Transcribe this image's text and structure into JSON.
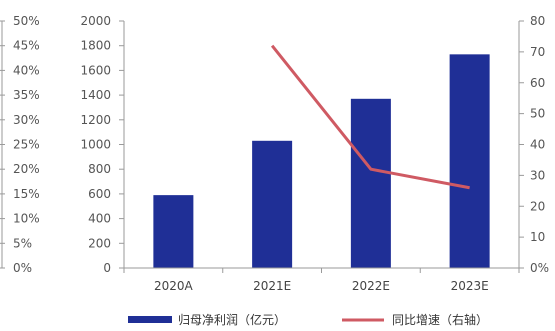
{
  "chart_data": {
    "type": "bar+line",
    "categories": [
      "2020A",
      "2021E",
      "2022E",
      "2023E"
    ],
    "series": [
      {
        "name": "归母净利润（亿元）",
        "type": "bar",
        "axis": "left",
        "color": "#1f2f96",
        "values": [
          590,
          1030,
          1370,
          1730
        ]
      },
      {
        "name": "同比增速（右轴）",
        "type": "line",
        "axis": "right",
        "color": "#cf5a63",
        "values": [
          null,
          72,
          32,
          26
        ]
      }
    ],
    "left_axis": {
      "ylim": [
        0,
        2000
      ],
      "ticks": [
        "0",
        "200",
        "400",
        "600",
        "800",
        "1000",
        "1200",
        "1400",
        "1600",
        "1800",
        "2000"
      ]
    },
    "right_axis": {
      "ylim": [
        0,
        80
      ],
      "ticks": [
        "0%",
        "10",
        "20",
        "30",
        "40",
        "50",
        "60",
        "70",
        "80"
      ]
    },
    "far_left_axis": {
      "ticks": [
        "0%",
        "5%",
        "10%",
        "15%",
        "20%",
        "25%",
        "30%",
        "35%",
        "40%",
        "45%",
        "50%"
      ]
    },
    "grid": false,
    "legend_position": "bottom"
  }
}
